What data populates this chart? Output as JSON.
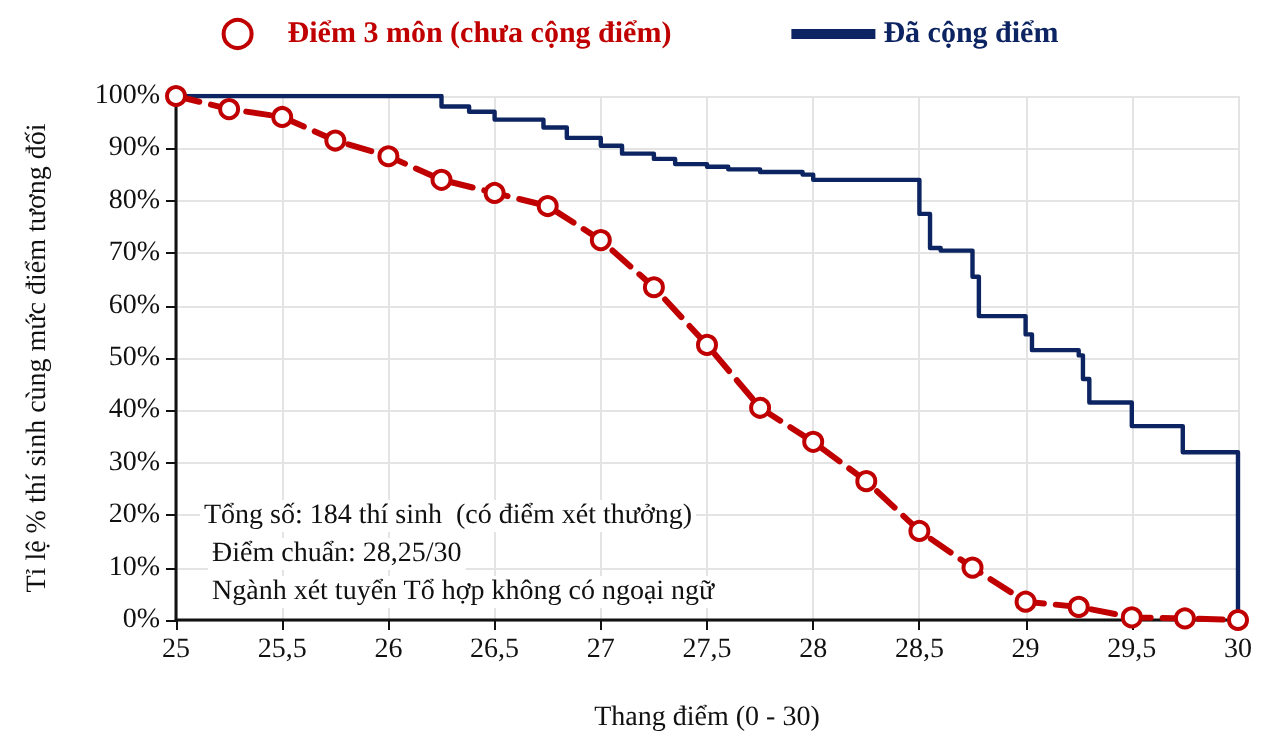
{
  "chart_data": {
    "type": "line",
    "xlabel": "Thang điểm (0 - 30)",
    "ylabel": "Tỉ lệ % thí sinh cùng mức điểm tương đối",
    "xlim": [
      25,
      30
    ],
    "xticks": [
      25,
      {
        "value": 25.5,
        "label": "25,5"
      },
      26,
      {
        "value": 26.5,
        "label": "26,5"
      },
      27,
      {
        "value": 27.5,
        "label": "27,5"
      },
      28,
      {
        "value": 28.5,
        "label": "28,5"
      },
      29,
      {
        "value": 29.5,
        "label": "29,5"
      },
      30
    ],
    "ylim": [
      0,
      100
    ],
    "yticks": [
      {
        "value": 0,
        "label": "0%"
      },
      {
        "value": 10,
        "label": "10%"
      },
      {
        "value": 20,
        "label": "20%"
      },
      {
        "value": 30,
        "label": "30%"
      },
      {
        "value": 40,
        "label": "40%"
      },
      {
        "value": 50,
        "label": "50%"
      },
      {
        "value": 60,
        "label": "60%"
      },
      {
        "value": 70,
        "label": "70%"
      },
      {
        "value": 80,
        "label": "80%"
      },
      {
        "value": 90,
        "label": "90%"
      },
      {
        "value": 100,
        "label": "100%"
      }
    ],
    "grid": true,
    "legend": "top",
    "series": [
      {
        "name": "Điểm 3 môn (chưa cộng điểm)",
        "color": "#c00000",
        "marker": "circle",
        "line_style": "dashed",
        "x": [
          25,
          25.25,
          25.5,
          25.75,
          26,
          26.25,
          26.5,
          26.75,
          27,
          27.25,
          27.5,
          27.75,
          28,
          28.25,
          28.5,
          28.75,
          29,
          29.25,
          29.5,
          29.75,
          30
        ],
        "values": [
          100,
          97.5,
          96,
          91.5,
          88.5,
          84,
          81.5,
          79,
          72.5,
          63.5,
          52.5,
          40.5,
          34,
          26.5,
          17,
          10,
          3.5,
          2.5,
          0.5,
          0.3,
          0
        ]
      },
      {
        "name": "Đã cộng điểm",
        "type": "step",
        "color": "#0c2461",
        "marker": "none",
        "line_style": "solid",
        "x": [
          25,
          26.25,
          26.38,
          26.5,
          26.73,
          26.84,
          27,
          27.1,
          27.25,
          27.35,
          27.5,
          27.6,
          27.75,
          27.95,
          28,
          28.5,
          28.55,
          28.6,
          28.75,
          28.78,
          29,
          29.03,
          29.25,
          29.27,
          29.3,
          29.5,
          29.74,
          30,
          30
        ],
        "values": [
          100,
          98,
          97,
          95.5,
          94,
          92,
          90.5,
          89,
          88,
          87,
          86.5,
          86,
          85.5,
          85,
          84,
          77.5,
          71,
          70.5,
          65.5,
          58,
          54.5,
          51.5,
          50.5,
          46,
          41.5,
          37,
          32,
          31.5,
          0
        ]
      }
    ],
    "annotations": [
      "Tổng số: 184 thí sinh  (có điểm xét thưởng)",
      "Điểm chuẩn: 28,25/30",
      "Ngành xét tuyển Tổ hợp không có ngoại ngữ"
    ]
  }
}
